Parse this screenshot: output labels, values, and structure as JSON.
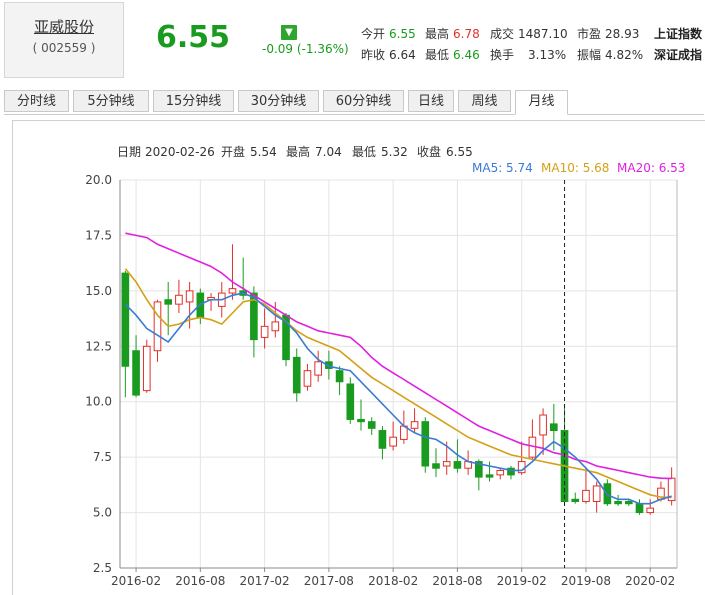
{
  "stock": {
    "name": "亚威股份",
    "code": "( 002559 )",
    "price": "6.55",
    "change": "-0.09 (-1.36%)"
  },
  "quote": {
    "open_label": "今开",
    "open": "6.55",
    "high_label": "最高",
    "high": "6.78",
    "volume_label": "成交",
    "volume": "1487.10",
    "pe_label": "市盈",
    "pe": "28.93",
    "prev_label": "昨收",
    "prev": "6.64",
    "low_label": "最低",
    "low": "6.46",
    "turnover_label": "换手",
    "turnover": "3.13%",
    "amplitude_label": "振幅",
    "amplitude": "4.82%",
    "index1": "上证指数",
    "index2": "深证成指"
  },
  "tabs": [
    "分时线",
    "5分钟线",
    "15分钟线",
    "30分钟线",
    "60分钟线",
    "日线",
    "周线",
    "月线"
  ],
  "active_tab": 7,
  "info": {
    "date_label": "日期",
    "date": "2020-02-26",
    "open_label": "开盘",
    "open": "5.54",
    "high_label": "最高",
    "high": "7.04",
    "low_label": "最低",
    "low": "5.32",
    "close_label": "收盘",
    "close": "6.55"
  },
  "colors": {
    "up": "#e0302a",
    "down": "#189b1e",
    "ma5": "#3a7bd5",
    "ma10": "#d4a017",
    "ma20": "#e020e0"
  },
  "chart_data": {
    "type": "candlestick",
    "ylim": [
      2.5,
      20.0
    ],
    "yticks": [
      "2.5",
      "5.0",
      "7.5",
      "10.0",
      "12.5",
      "15.0",
      "17.5",
      "20.0"
    ],
    "xticks": [
      {
        "index": 1,
        "label": "2016-02"
      },
      {
        "index": 7,
        "label": "2016-08"
      },
      {
        "index": 13,
        "label": "2017-02"
      },
      {
        "index": 19,
        "label": "2017-08"
      },
      {
        "index": 25,
        "label": "2018-02"
      },
      {
        "index": 31,
        "label": "2018-08"
      },
      {
        "index": 37,
        "label": "2019-02"
      },
      {
        "index": 43,
        "label": "2019-08"
      },
      {
        "index": 49,
        "label": "2020-02"
      }
    ],
    "crosshair_index": 41,
    "ma_labels": [
      {
        "name": "MA5",
        "text": "MA5: 5.74",
        "key": "ma5"
      },
      {
        "name": "MA10",
        "text": "MA10: 5.68",
        "key": "ma10"
      },
      {
        "name": "MA20",
        "text": "MA20: 6.53",
        "key": "ma20"
      }
    ],
    "candles": [
      {
        "o": 15.8,
        "c": 11.6,
        "h": 15.9,
        "l": 10.2
      },
      {
        "o": 12.3,
        "c": 10.3,
        "h": 13.0,
        "l": 10.2
      },
      {
        "o": 10.5,
        "c": 12.5,
        "h": 12.8,
        "l": 10.4
      },
      {
        "o": 12.3,
        "c": 14.5,
        "h": 14.6,
        "l": 11.8
      },
      {
        "o": 14.6,
        "c": 14.4,
        "h": 15.4,
        "l": 13.0
      },
      {
        "o": 14.4,
        "c": 14.8,
        "h": 15.5,
        "l": 14.0
      },
      {
        "o": 14.5,
        "c": 15.0,
        "h": 15.4,
        "l": 13.3
      },
      {
        "o": 14.9,
        "c": 13.8,
        "h": 15.1,
        "l": 13.5
      },
      {
        "o": 14.6,
        "c": 14.7,
        "h": 14.9,
        "l": 14.1
      },
      {
        "o": 14.3,
        "c": 14.9,
        "h": 15.4,
        "l": 13.8
      },
      {
        "o": 14.9,
        "c": 15.1,
        "h": 17.1,
        "l": 14.6
      },
      {
        "o": 15.0,
        "c": 14.8,
        "h": 16.5,
        "l": 14.6
      },
      {
        "o": 14.9,
        "c": 12.8,
        "h": 15.2,
        "l": 12.0
      },
      {
        "o": 12.9,
        "c": 13.4,
        "h": 14.2,
        "l": 12.4
      },
      {
        "o": 13.2,
        "c": 13.6,
        "h": 14.5,
        "l": 12.9
      },
      {
        "o": 13.9,
        "c": 11.9,
        "h": 14.0,
        "l": 11.6
      },
      {
        "o": 12.0,
        "c": 10.4,
        "h": 12.4,
        "l": 10.0
      },
      {
        "o": 10.7,
        "c": 11.4,
        "h": 11.7,
        "l": 10.5
      },
      {
        "o": 11.2,
        "c": 11.8,
        "h": 12.3,
        "l": 10.9
      },
      {
        "o": 11.8,
        "c": 11.5,
        "h": 12.3,
        "l": 11.0
      },
      {
        "o": 11.4,
        "c": 10.9,
        "h": 11.6,
        "l": 10.3
      },
      {
        "o": 10.8,
        "c": 9.2,
        "h": 11.1,
        "l": 9.0
      },
      {
        "o": 9.2,
        "c": 9.1,
        "h": 10.1,
        "l": 8.7
      },
      {
        "o": 9.1,
        "c": 8.8,
        "h": 9.3,
        "l": 8.5
      },
      {
        "o": 8.7,
        "c": 7.9,
        "h": 8.9,
        "l": 7.4
      },
      {
        "o": 8.0,
        "c": 8.4,
        "h": 9.1,
        "l": 7.8
      },
      {
        "o": 8.3,
        "c": 8.9,
        "h": 9.6,
        "l": 8.1
      },
      {
        "o": 8.8,
        "c": 9.1,
        "h": 9.7,
        "l": 8.6
      },
      {
        "o": 9.1,
        "c": 7.1,
        "h": 9.3,
        "l": 6.8
      },
      {
        "o": 7.2,
        "c": 7.0,
        "h": 7.9,
        "l": 6.6
      },
      {
        "o": 7.1,
        "c": 7.3,
        "h": 8.2,
        "l": 6.7
      },
      {
        "o": 7.3,
        "c": 7.0,
        "h": 8.3,
        "l": 6.8
      },
      {
        "o": 7.0,
        "c": 7.3,
        "h": 7.8,
        "l": 6.7
      },
      {
        "o": 7.3,
        "c": 6.6,
        "h": 7.4,
        "l": 6.0
      },
      {
        "o": 6.7,
        "c": 6.6,
        "h": 7.3,
        "l": 6.4
      },
      {
        "o": 6.7,
        "c": 6.9,
        "h": 7.0,
        "l": 6.5
      },
      {
        "o": 7.0,
        "c": 6.7,
        "h": 7.1,
        "l": 6.5
      },
      {
        "o": 6.8,
        "c": 7.3,
        "h": 8.2,
        "l": 6.7
      },
      {
        "o": 7.5,
        "c": 8.4,
        "h": 9.2,
        "l": 7.4
      },
      {
        "o": 8.5,
        "c": 9.4,
        "h": 9.7,
        "l": 7.6
      },
      {
        "o": 9.0,
        "c": 8.7,
        "h": 9.9,
        "l": 7.8
      },
      {
        "o": 8.7,
        "c": 5.5,
        "h": 9.9,
        "l": 5.3
      },
      {
        "o": 5.6,
        "c": 5.5,
        "h": 5.9,
        "l": 5.4
      },
      {
        "o": 5.5,
        "c": 6.0,
        "h": 7.0,
        "l": 5.4
      },
      {
        "o": 5.5,
        "c": 6.2,
        "h": 6.4,
        "l": 5.0
      },
      {
        "o": 6.3,
        "c": 5.4,
        "h": 6.5,
        "l": 5.3
      },
      {
        "o": 5.5,
        "c": 5.4,
        "h": 5.8,
        "l": 5.3
      },
      {
        "o": 5.5,
        "c": 5.4,
        "h": 5.6,
        "l": 5.3
      },
      {
        "o": 5.4,
        "c": 5.0,
        "h": 5.6,
        "l": 4.9
      },
      {
        "o": 5.0,
        "c": 5.2,
        "h": 5.6,
        "l": 4.9
      },
      {
        "o": 5.6,
        "c": 6.1,
        "h": 6.4,
        "l": 5.5
      },
      {
        "o": 5.54,
        "c": 6.55,
        "h": 7.04,
        "l": 5.32
      }
    ],
    "ma5": [
      14.4,
      13.9,
      13.3,
      13.0,
      12.7,
      13.3,
      13.9,
      14.4,
      14.6,
      14.6,
      14.8,
      14.9,
      14.7,
      14.3,
      13.9,
      13.6,
      13.1,
      12.4,
      11.9,
      11.6,
      11.5,
      11.4,
      10.9,
      10.4,
      9.9,
      9.4,
      8.9,
      8.6,
      8.4,
      8.3,
      8.0,
      7.6,
      7.3,
      7.2,
      7.1,
      7.0,
      6.9,
      6.9,
      7.3,
      7.8,
      8.2,
      7.9,
      7.5,
      7.0,
      6.5,
      5.8,
      5.6,
      5.6,
      5.4,
      5.4,
      5.6,
      5.74
    ],
    "ma10": [
      16.0,
      15.4,
      14.6,
      13.9,
      13.4,
      13.5,
      13.7,
      13.8,
      13.7,
      13.5,
      14.0,
      14.5,
      14.6,
      14.4,
      14.0,
      13.6,
      13.2,
      12.9,
      12.7,
      12.5,
      12.3,
      11.9,
      11.5,
      11.1,
      10.8,
      10.5,
      10.2,
      9.9,
      9.6,
      9.3,
      9.0,
      8.7,
      8.4,
      8.2,
      8.0,
      7.8,
      7.6,
      7.5,
      7.4,
      7.3,
      7.2,
      7.1,
      7.0,
      6.9,
      6.8,
      6.6,
      6.4,
      6.2,
      6.0,
      5.8,
      5.7,
      5.68
    ],
    "ma20": [
      17.6,
      17.5,
      17.4,
      17.1,
      16.9,
      16.7,
      16.5,
      16.3,
      16.1,
      15.8,
      15.4,
      15.1,
      14.8,
      14.5,
      14.2,
      13.9,
      13.6,
      13.4,
      13.2,
      13.1,
      13.0,
      12.9,
      12.5,
      12.0,
      11.6,
      11.3,
      11.0,
      10.7,
      10.4,
      10.1,
      9.8,
      9.5,
      9.2,
      8.9,
      8.7,
      8.5,
      8.3,
      8.1,
      8.0,
      7.9,
      7.7,
      7.6,
      7.4,
      7.3,
      7.1,
      7.0,
      6.9,
      6.8,
      6.7,
      6.6,
      6.55,
      6.53
    ]
  }
}
